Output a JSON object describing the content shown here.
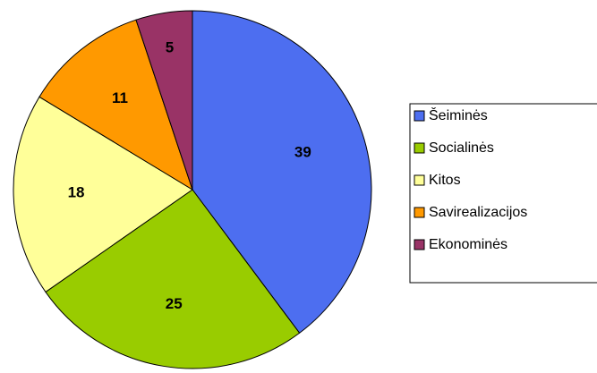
{
  "chart_data": {
    "type": "pie",
    "categories": [
      "Šeiminės",
      "Socialinės",
      "Kitos",
      "Savirealizacijos",
      "Ekonominės"
    ],
    "values": [
      39,
      25,
      18,
      11,
      5
    ],
    "colors": [
      "#4d6ef0",
      "#99cc00",
      "#ffff99",
      "#ff9900",
      "#993366"
    ],
    "legend": "right"
  }
}
